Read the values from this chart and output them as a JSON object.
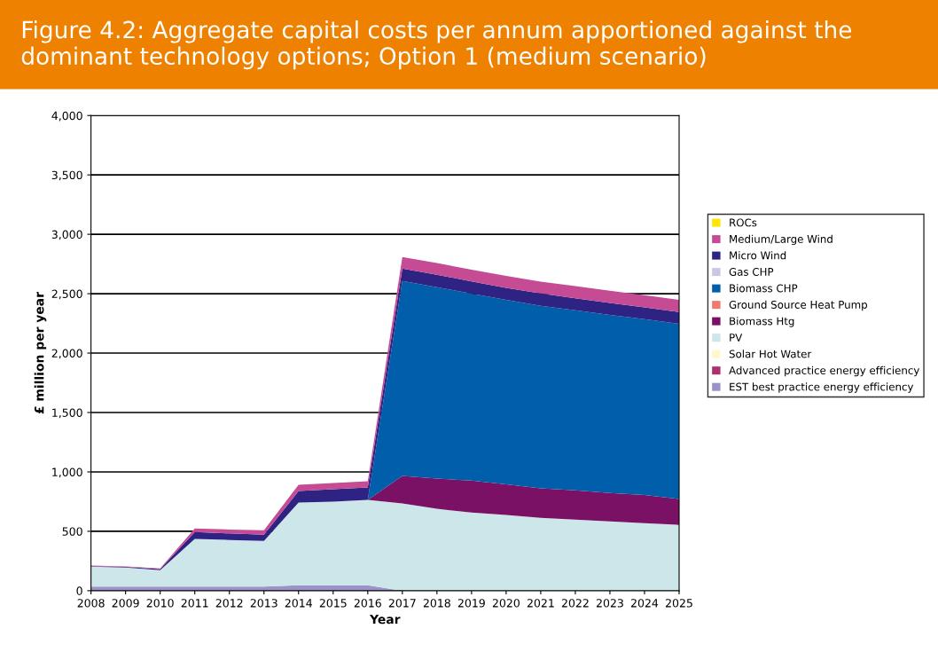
{
  "chart_data": {
    "type": "area",
    "stacked": true,
    "title": "Figure 4.2: Aggregate capital costs per annum apportioned against the dominant technology options; Option 1 (medium scenario)",
    "xlabel": "Year",
    "ylabel": "£ million per year",
    "x": [
      2008,
      2009,
      2010,
      2011,
      2012,
      2013,
      2014,
      2015,
      2016,
      2017,
      2018,
      2019,
      2020,
      2021,
      2022,
      2023,
      2024,
      2025
    ],
    "xlim": [
      2008,
      2025
    ],
    "xticks": [
      2008,
      2009,
      2010,
      2011,
      2012,
      2013,
      2014,
      2015,
      2016,
      2017,
      2018,
      2019,
      2020,
      2021,
      2022,
      2023,
      2024,
      2025
    ],
    "ylim": [
      0,
      4000
    ],
    "yticks": [
      0,
      {
        "value": 500,
        "label": "500"
      },
      {
        "value": 1000,
        "label": "1,000"
      },
      {
        "value": 1500,
        "label": "1,500"
      },
      {
        "value": 2000,
        "label": "2,000"
      },
      {
        "value": 2500,
        "label": "2,500"
      },
      {
        "value": 3000,
        "label": "3,000"
      },
      {
        "value": 3500,
        "label": "3,500"
      },
      {
        "value": 4000,
        "label": "4,000"
      }
    ],
    "grid": "y",
    "legend": "right",
    "series": [
      {
        "name": "EST best practice energy efficiency",
        "color": "#9b93c8",
        "values": [
          35,
          35,
          35,
          35,
          35,
          35,
          45,
          45,
          45,
          0,
          0,
          0,
          0,
          0,
          0,
          0,
          0,
          0
        ]
      },
      {
        "name": "Advanced practice energy efficiency",
        "color": "#b0306e",
        "values": [
          null,
          null,
          null,
          null,
          null,
          null,
          null,
          null,
          null,
          null,
          null,
          null,
          null,
          null,
          null,
          null,
          null,
          null
        ]
      },
      {
        "name": "Solar Hot Water",
        "color": "#fff8c8",
        "values": [
          null,
          null,
          null,
          null,
          null,
          null,
          null,
          null,
          null,
          null,
          null,
          null,
          null,
          null,
          null,
          null,
          null,
          null
        ]
      },
      {
        "name": "PV",
        "color": "#cde6ea",
        "values": [
          167,
          160,
          137,
          400,
          392,
          385,
          697,
          704,
          719,
          734,
          689,
          659,
          637,
          614,
          599,
          584,
          569,
          554
        ]
      },
      {
        "name": "Biomass Htg",
        "color": "#7a1164",
        "values": [
          0,
          0,
          0,
          0,
          0,
          0,
          0,
          0,
          0,
          232,
          255,
          267,
          258,
          247,
          246,
          238,
          237,
          218
        ]
      },
      {
        "name": "Ground Source Heat Pump",
        "color": "#f07a6e",
        "values": [
          null,
          null,
          null,
          null,
          null,
          null,
          null,
          null,
          null,
          null,
          null,
          null,
          null,
          null,
          null,
          null,
          null,
          null
        ]
      },
      {
        "name": "Biomass CHP",
        "color": "#005eaa",
        "values": [
          0,
          0,
          0,
          0,
          0,
          0,
          0,
          0,
          0,
          1641,
          1611,
          1574,
          1553,
          1536,
          1515,
          1500,
          1479,
          1475
        ]
      },
      {
        "name": "Gas CHP",
        "color": "#c8c8e6",
        "values": [
          null,
          null,
          null,
          null,
          null,
          null,
          null,
          null,
          null,
          null,
          null,
          null,
          null,
          null,
          null,
          null,
          null,
          null
        ]
      },
      {
        "name": "Micro Wind",
        "color": "#2e2382",
        "values": [
          5,
          5,
          10,
          59,
          55,
          52,
          97,
          105,
          105,
          105,
          105,
          103,
          102,
          105,
          102,
          100,
          99,
          98
        ]
      },
      {
        "name": "Medium/Large Wind",
        "color": "#c44b94",
        "values": [
          5,
          5,
          5,
          30,
          33,
          37,
          52,
          52,
          52,
          97,
          98,
          100,
          100,
          100,
          102,
          103,
          103,
          104
        ]
      },
      {
        "name": "ROCs",
        "color": "#ffe600",
        "values": [
          null,
          null,
          null,
          null,
          null,
          null,
          null,
          null,
          null,
          null,
          null,
          null,
          null,
          null,
          null,
          null,
          null,
          null
        ]
      }
    ]
  }
}
